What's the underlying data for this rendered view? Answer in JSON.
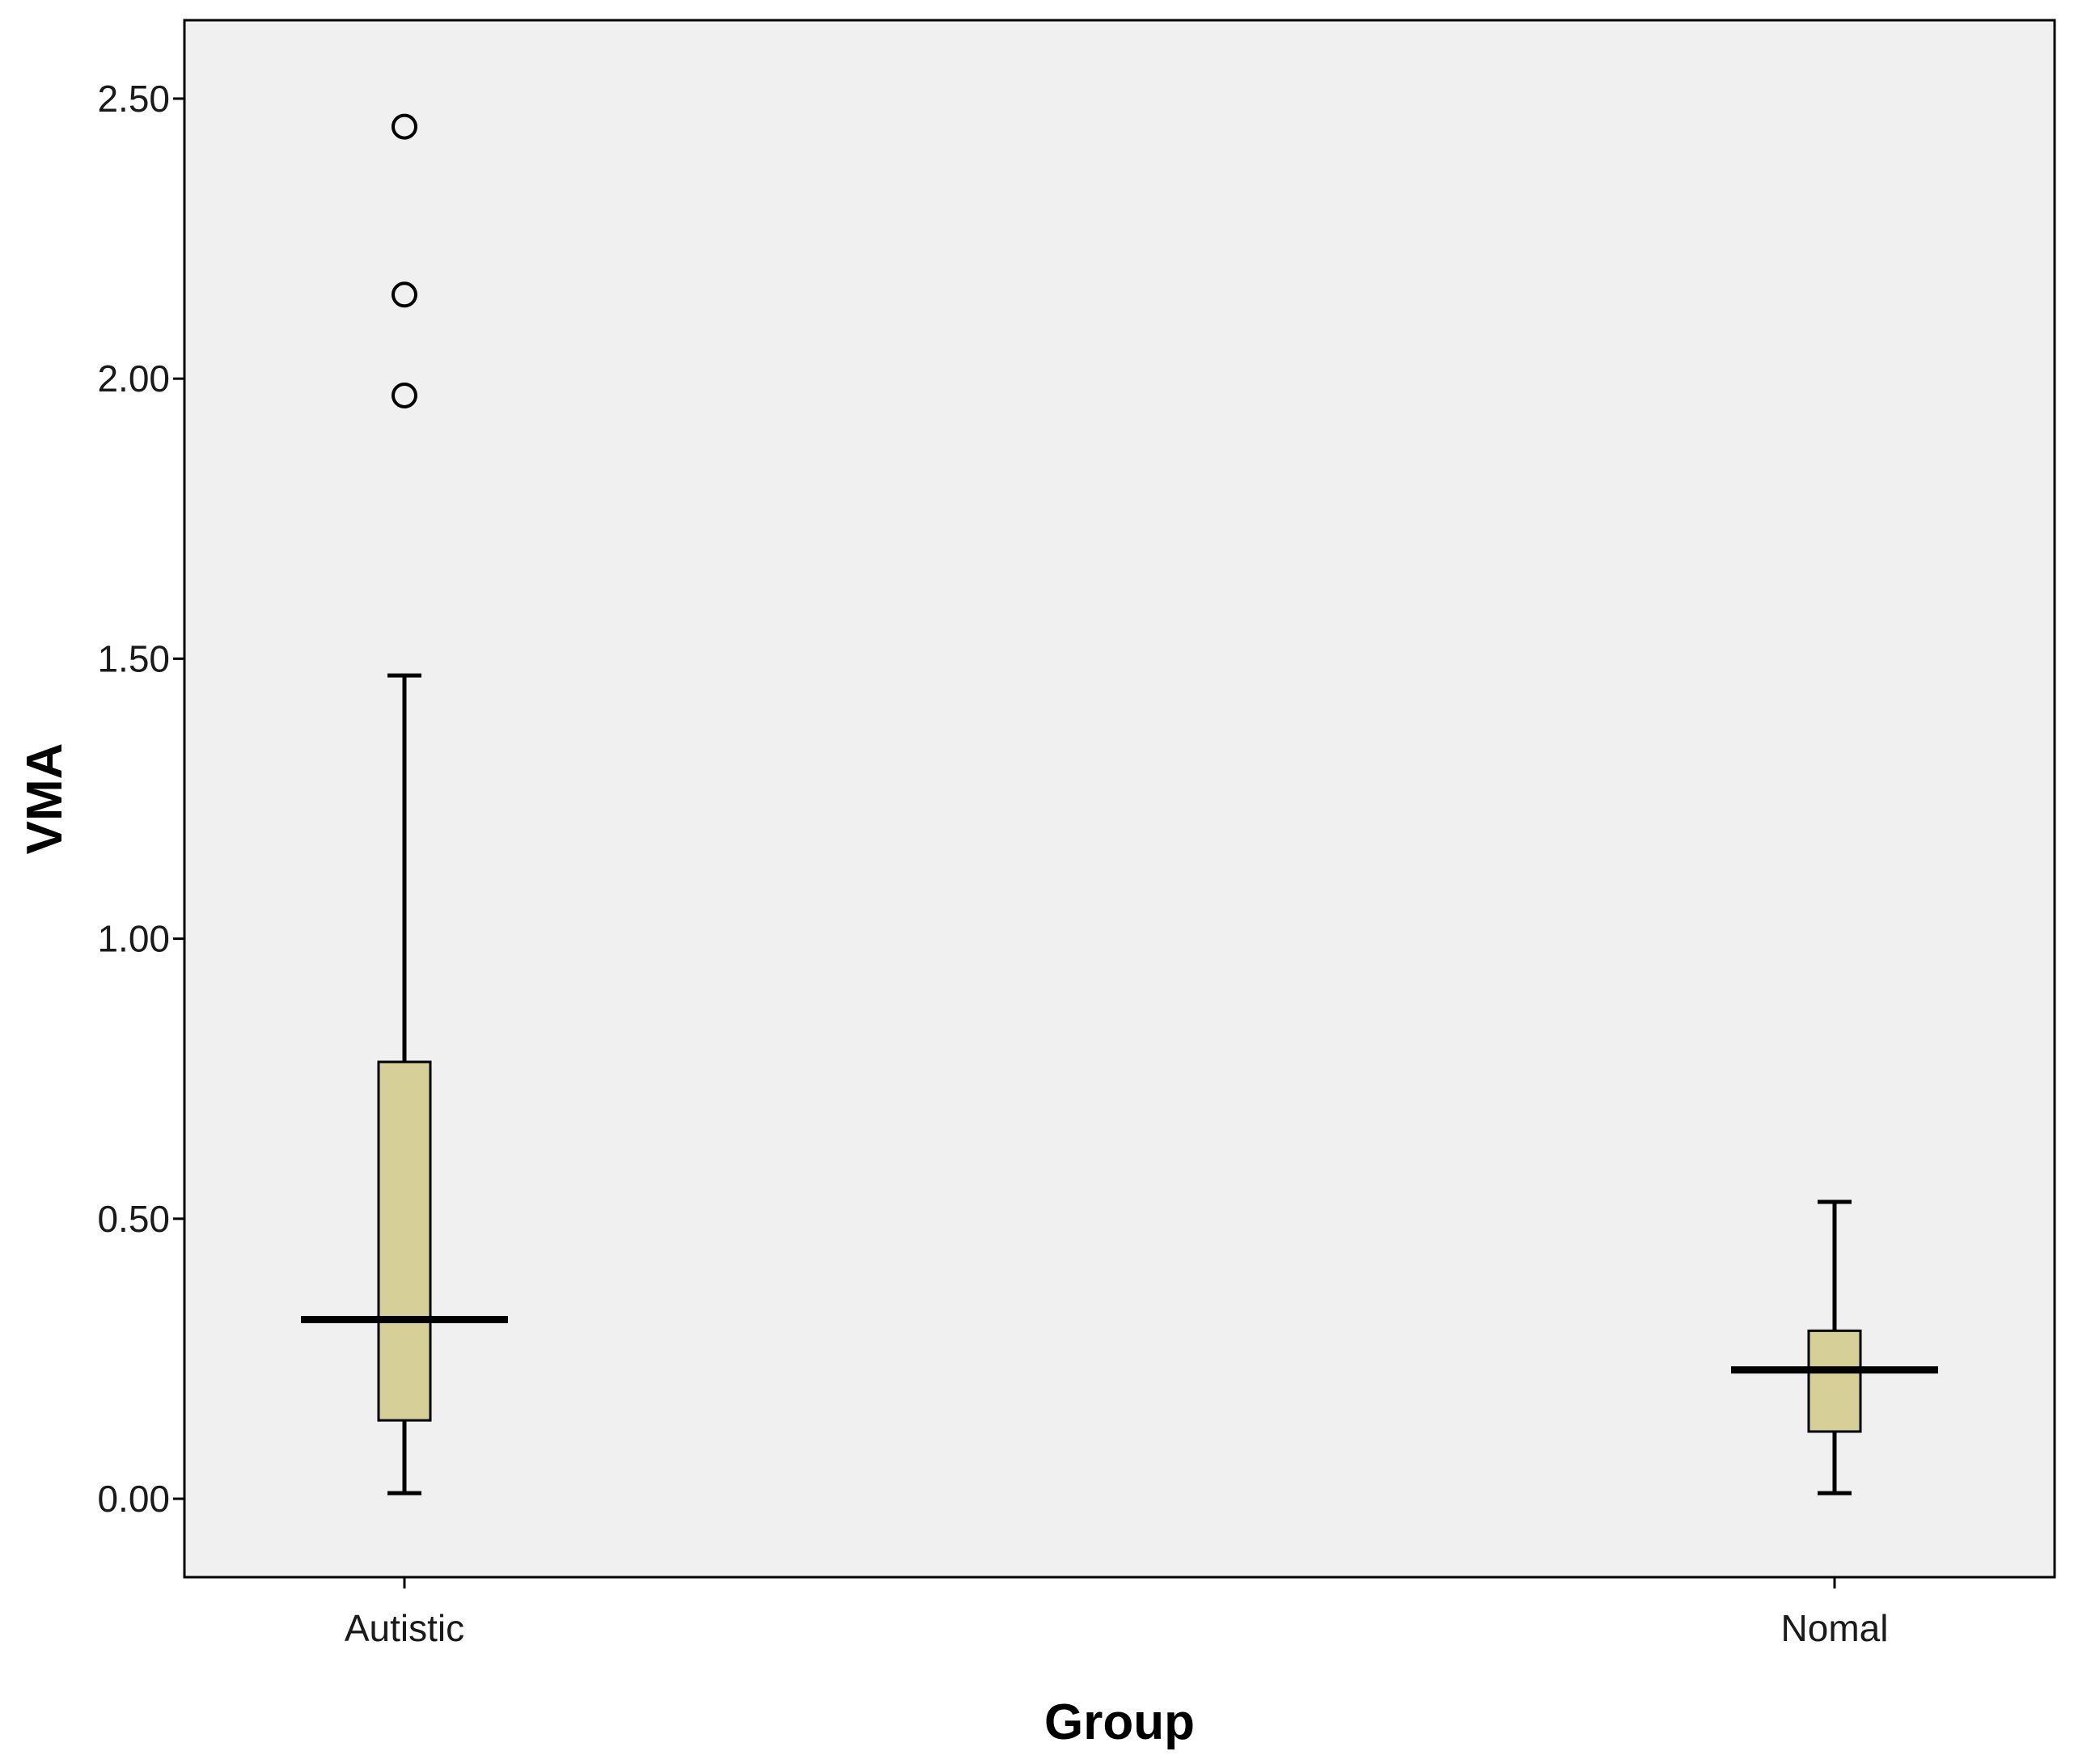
{
  "chart_data": {
    "type": "boxplot",
    "xlabel": "Group",
    "ylabel": "VMA",
    "ylim": [
      -0.14,
      2.64
    ],
    "yticks": [
      0.0,
      0.5,
      1.0,
      1.5,
      2.0,
      2.5
    ],
    "ytick_labels": [
      "0.00",
      "0.50",
      "1.00",
      "1.50",
      "2.00",
      "2.50"
    ],
    "grid": false,
    "categories": [
      "Autistic",
      "Nomal"
    ],
    "boxes": [
      {
        "category": "Autistic",
        "whisker_low": 0.01,
        "q1": 0.14,
        "median": 0.32,
        "q3": 0.78,
        "whisker_high": 1.47,
        "outliers": [
          1.97,
          2.15,
          2.45
        ]
      },
      {
        "category": "Nomal",
        "whisker_low": 0.01,
        "q1": 0.12,
        "median": 0.23,
        "q3": 0.3,
        "whisker_high": 0.53,
        "outliers": []
      }
    ],
    "colors": {
      "plot_background": "#f0f0f0",
      "box_fill": "#d6cf97",
      "line": "#000000"
    }
  }
}
